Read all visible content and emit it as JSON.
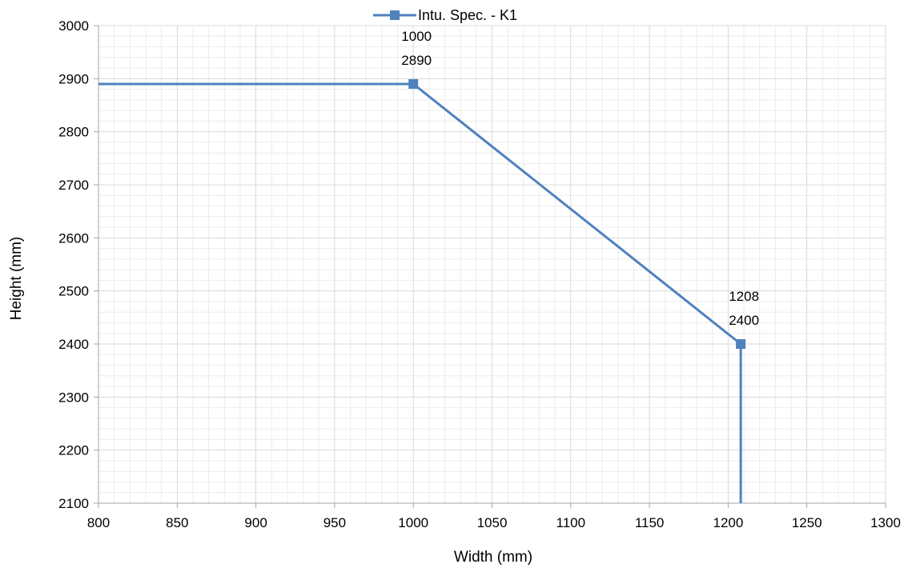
{
  "chart_data": {
    "type": "line",
    "legend": {
      "position": "top"
    },
    "xlabel": "Width (mm)",
    "ylabel": "Height (mm)",
    "xlim": [
      800,
      1300
    ],
    "ylim": [
      2100,
      3000
    ],
    "x_ticks": [
      800,
      850,
      900,
      950,
      1000,
      1050,
      1100,
      1150,
      1200,
      1250,
      1300
    ],
    "y_ticks": [
      2100,
      2200,
      2300,
      2400,
      2500,
      2600,
      2700,
      2800,
      2900,
      3000
    ],
    "grid": {
      "major": true,
      "minor": true
    },
    "series": [
      {
        "name": "Intu. Spec. - K1",
        "color": "#4f81bd",
        "points": [
          {
            "x": 800,
            "y": 2890,
            "marker": false
          },
          {
            "x": 1000,
            "y": 2890,
            "marker": true,
            "label": [
              "1000",
              "2890"
            ]
          },
          {
            "x": 1208,
            "y": 2400,
            "marker": true,
            "label": [
              "1208",
              "2400"
            ]
          },
          {
            "x": 1208,
            "y": 2100,
            "marker": false
          }
        ]
      }
    ]
  }
}
